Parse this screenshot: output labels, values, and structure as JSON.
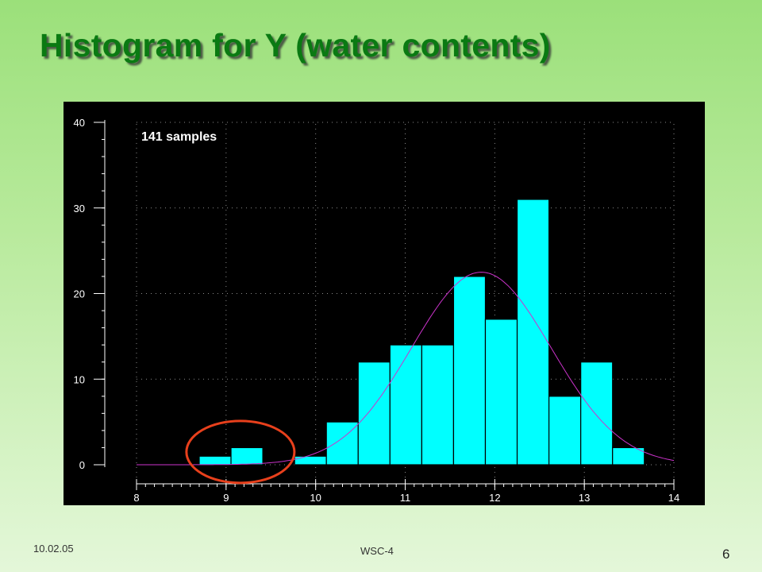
{
  "slide": {
    "title": "Histogram for Y (water contents)",
    "footer_date": "10.02.05",
    "footer_center": "WSC-4",
    "page_number": "6"
  },
  "colors": {
    "title": "#0a7a12",
    "chart_background": "#000000",
    "bars": "#00ffff",
    "normal_curve": "#cc33cc",
    "highlight_circle": "#e8401c",
    "axis_text": "#ffffff"
  },
  "chart_data": {
    "type": "bar",
    "title": "",
    "annotation": "141 samples",
    "xlabel": "",
    "ylabel": "",
    "xlim": [
      8,
      14
    ],
    "ylim": [
      0,
      40
    ],
    "x_ticks": [
      "8",
      "9",
      "10",
      "11",
      "12",
      "13",
      "14"
    ],
    "y_ticks": [
      "0",
      "10",
      "20",
      "30",
      "40"
    ],
    "grid": true,
    "bin_width": 0.355,
    "bins": [
      {
        "x_start": 8.7,
        "x_end": 9.055,
        "count": 1
      },
      {
        "x_start": 9.055,
        "x_end": 9.41,
        "count": 2
      },
      {
        "x_start": 9.41,
        "x_end": 9.765,
        "count": 0
      },
      {
        "x_start": 9.765,
        "x_end": 10.12,
        "count": 1
      },
      {
        "x_start": 10.12,
        "x_end": 10.475,
        "count": 5
      },
      {
        "x_start": 10.475,
        "x_end": 10.83,
        "count": 12
      },
      {
        "x_start": 10.83,
        "x_end": 11.185,
        "count": 14
      },
      {
        "x_start": 11.185,
        "x_end": 11.54,
        "count": 14
      },
      {
        "x_start": 11.54,
        "x_end": 11.895,
        "count": 22
      },
      {
        "x_start": 11.895,
        "x_end": 12.25,
        "count": 17
      },
      {
        "x_start": 12.25,
        "x_end": 12.605,
        "count": 31
      },
      {
        "x_start": 12.605,
        "x_end": 12.96,
        "count": 8
      },
      {
        "x_start": 12.96,
        "x_end": 13.315,
        "count": 12
      },
      {
        "x_start": 13.315,
        "x_end": 13.67,
        "count": 2
      }
    ],
    "normal_curve": {
      "mean": 11.85,
      "sd": 0.78,
      "peak": 22.5
    },
    "highlight": {
      "label": "outlier bins",
      "x_center": 9.16,
      "y_center": 1.5
    }
  }
}
